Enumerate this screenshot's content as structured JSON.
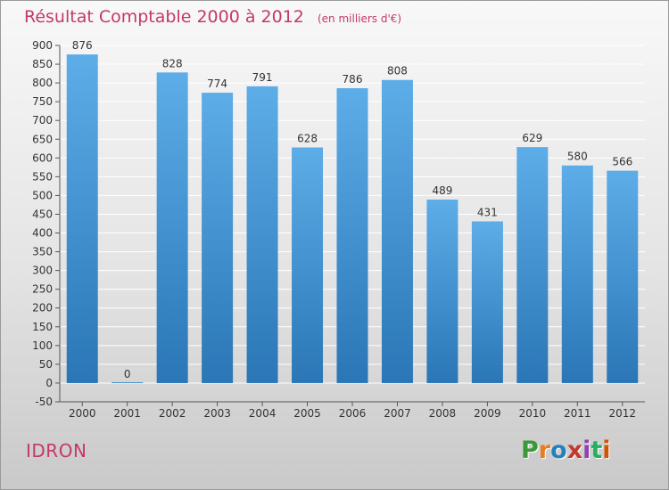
{
  "header": {
    "title": "Résultat Comptable 2000 à 2012",
    "unit": "(en milliers d'€)"
  },
  "commune": "IDRON",
  "logo": {
    "text": "Proxiti",
    "letter_colors": [
      "#3a9a3a",
      "#e67e22",
      "#2980b9",
      "#c0392b",
      "#8e44ad",
      "#27ae60",
      "#d35400"
    ]
  },
  "chart_data": {
    "type": "bar",
    "title": "Résultat Comptable 2000 à 2012",
    "subtitle": "(en milliers d'€)",
    "categories": [
      "2000",
      "2001",
      "2002",
      "2003",
      "2004",
      "2005",
      "2006",
      "2007",
      "2008",
      "2009",
      "2010",
      "2011",
      "2012"
    ],
    "values": [
      876,
      0,
      828,
      774,
      791,
      628,
      786,
      808,
      489,
      431,
      629,
      580,
      566
    ],
    "value_labels": [
      "876",
      "0",
      "828",
      "774",
      "791",
      "628",
      "786",
      "808",
      "489",
      "431",
      "629",
      "580",
      "566"
    ],
    "yticks": [
      -50,
      0,
      50,
      100,
      150,
      200,
      250,
      300,
      350,
      400,
      450,
      500,
      550,
      600,
      650,
      700,
      750,
      800,
      850,
      900
    ],
    "ylim": [
      -50,
      900
    ],
    "grid": true,
    "legend": "none",
    "colors": {
      "bar_light": "#5dade8",
      "bar_dark": "#2a76b6",
      "grid": "#ffffff",
      "axis": "#555555"
    }
  }
}
